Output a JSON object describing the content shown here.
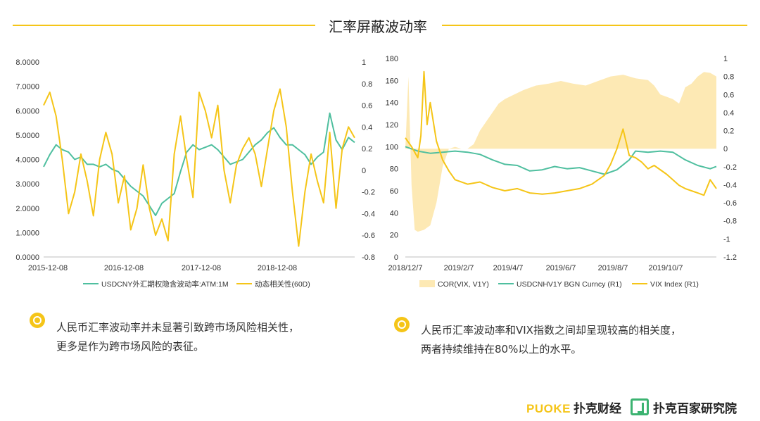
{
  "page": {
    "title": "汇率屏蔽波动率",
    "notes": [
      {
        "line1": "人民币汇率波动率并未显著引致跨市场风险相关性，",
        "line2": "更多是作为跨市场风险的表征。"
      },
      {
        "line1": "人民币汇率波动率和VIX指数之间却呈现较高的相关度，",
        "line2": "两者持续维持在80%以上的水平。"
      }
    ],
    "footer": {
      "brand1_latin": "PUOKE",
      "brand1_cn": "扑克财经",
      "brand2": "扑克百家研究院"
    }
  },
  "colors": {
    "accent": "#f5c518",
    "green_series": "#4fbf9f",
    "yellow_series": "#f5c518",
    "area_fill": "#fde9b4"
  },
  "chart_data": [
    {
      "type": "line",
      "title": "",
      "x_tick_labels": [
        "2015-12-08",
        "2016-12-08",
        "2017-12-08",
        "2018-12-08"
      ],
      "y_left": {
        "range": [
          0,
          8
        ],
        "ticks": [
          "0.0000",
          "1.0000",
          "2.0000",
          "3.0000",
          "4.0000",
          "5.0000",
          "6.0000",
          "7.0000",
          "8.0000"
        ]
      },
      "y_right": {
        "range": [
          -0.8,
          1
        ],
        "ticks": [
          "-0.8",
          "-0.6",
          "-0.4",
          "-0.2",
          "0",
          "0.2",
          "0.4",
          "0.6",
          "0.8",
          "1"
        ]
      },
      "series": [
        {
          "name": "USDCNY外汇期权隐含波动率:ATM:1M",
          "axis": "left",
          "color": "#4fbf9f",
          "t": [
            0,
            0.02,
            0.04,
            0.06,
            0.08,
            0.1,
            0.12,
            0.14,
            0.16,
            0.18,
            0.2,
            0.22,
            0.24,
            0.26,
            0.28,
            0.3,
            0.32,
            0.34,
            0.36,
            0.38,
            0.4,
            0.42,
            0.44,
            0.46,
            0.48,
            0.5,
            0.52,
            0.54,
            0.56,
            0.58,
            0.6,
            0.62,
            0.64,
            0.66,
            0.68,
            0.7,
            0.72,
            0.74,
            0.76,
            0.78,
            0.8,
            0.82,
            0.84,
            0.86,
            0.88,
            0.9,
            0.92,
            0.94,
            0.96,
            0.98,
            1
          ],
          "values": [
            3.7,
            4.2,
            4.6,
            4.4,
            4.3,
            4.0,
            4.1,
            3.8,
            3.8,
            3.7,
            3.8,
            3.6,
            3.5,
            3.2,
            2.9,
            2.7,
            2.5,
            2.1,
            1.7,
            2.2,
            2.4,
            2.6,
            3.5,
            4.3,
            4.6,
            4.4,
            4.5,
            4.6,
            4.4,
            4.1,
            3.8,
            3.9,
            4.0,
            4.3,
            4.6,
            4.8,
            5.1,
            5.3,
            4.9,
            4.6,
            4.6,
            4.4,
            4.2,
            3.8,
            4.1,
            4.3,
            5.9,
            4.8,
            4.4,
            4.9,
            4.7
          ]
        },
        {
          "name": "动态相关性(60D)",
          "axis": "right",
          "color": "#f5c518",
          "t": [
            0,
            0.02,
            0.04,
            0.06,
            0.08,
            0.1,
            0.12,
            0.14,
            0.16,
            0.18,
            0.2,
            0.22,
            0.24,
            0.26,
            0.28,
            0.3,
            0.32,
            0.34,
            0.36,
            0.38,
            0.4,
            0.42,
            0.44,
            0.46,
            0.48,
            0.5,
            0.52,
            0.54,
            0.56,
            0.58,
            0.6,
            0.62,
            0.64,
            0.66,
            0.68,
            0.7,
            0.72,
            0.74,
            0.76,
            0.78,
            0.8,
            0.82,
            0.84,
            0.86,
            0.88,
            0.9,
            0.92,
            0.94,
            0.96,
            0.98,
            1
          ],
          "values": [
            0.6,
            0.72,
            0.5,
            0.1,
            -0.4,
            -0.2,
            0.15,
            -0.1,
            -0.42,
            0.1,
            0.35,
            0.15,
            -0.3,
            -0.05,
            -0.55,
            -0.35,
            0.05,
            -0.35,
            -0.6,
            -0.45,
            -0.65,
            0.15,
            0.5,
            0.1,
            -0.25,
            0.72,
            0.55,
            0.3,
            0.6,
            0.0,
            -0.3,
            0.05,
            0.2,
            0.3,
            0.15,
            -0.15,
            0.2,
            0.55,
            0.75,
            0.4,
            -0.2,
            -0.7,
            -0.2,
            0.15,
            -0.1,
            -0.3,
            0.35,
            -0.35,
            0.2,
            0.4,
            0.3
          ]
        }
      ]
    },
    {
      "type": "line",
      "title": "",
      "x_tick_labels": [
        "2018/12/7",
        "2019/2/7",
        "2019/4/7",
        "2019/6/7",
        "2019/8/7",
        "2019/10/7"
      ],
      "y_left": {
        "range": [
          0,
          180
        ],
        "ticks": [
          "0",
          "20",
          "40",
          "60",
          "80",
          "100",
          "120",
          "140",
          "160",
          "180"
        ]
      },
      "y_right": {
        "range": [
          -1.2,
          1
        ],
        "ticks": [
          "-1.2",
          "-1",
          "-0.8",
          "-0.6",
          "-0.4",
          "-0.2",
          "0",
          "0.2",
          "0.4",
          "0.6",
          "0.8",
          "1"
        ]
      },
      "series": [
        {
          "name": "COR(VIX, V1Y)",
          "axis": "right",
          "kind": "area",
          "color": "#fde9b4",
          "t": [
            0,
            0.01,
            0.02,
            0.03,
            0.04,
            0.06,
            0.08,
            0.1,
            0.12,
            0.14,
            0.16,
            0.18,
            0.2,
            0.22,
            0.24,
            0.26,
            0.28,
            0.3,
            0.32,
            0.35,
            0.38,
            0.42,
            0.46,
            0.5,
            0.54,
            0.58,
            0.62,
            0.66,
            0.7,
            0.74,
            0.78,
            0.8,
            0.82,
            0.86,
            0.88,
            0.9,
            0.92,
            0.94,
            0.96,
            0.98,
            1
          ],
          "values": [
            0,
            0.8,
            -0.4,
            -0.9,
            -0.92,
            -0.9,
            -0.85,
            -0.6,
            -0.2,
            0,
            0.02,
            0.0,
            0.0,
            0.05,
            0.2,
            0.3,
            0.4,
            0.5,
            0.55,
            0.6,
            0.65,
            0.7,
            0.72,
            0.75,
            0.72,
            0.7,
            0.75,
            0.8,
            0.82,
            0.78,
            0.76,
            0.7,
            0.6,
            0.55,
            0.5,
            0.68,
            0.72,
            0.8,
            0.85,
            0.84,
            0.8
          ]
        },
        {
          "name": "USDCNHV1Y BGN Curncy  (R1)",
          "axis": "left",
          "color": "#4fbf9f",
          "t": [
            0,
            0.04,
            0.08,
            0.12,
            0.16,
            0.2,
            0.24,
            0.28,
            0.32,
            0.36,
            0.4,
            0.44,
            0.48,
            0.52,
            0.56,
            0.6,
            0.64,
            0.68,
            0.72,
            0.74,
            0.78,
            0.82,
            0.86,
            0.9,
            0.94,
            0.98,
            1
          ],
          "values": [
            100,
            96,
            94,
            95,
            96,
            95,
            93,
            88,
            84,
            83,
            78,
            79,
            82,
            80,
            81,
            78,
            75,
            79,
            88,
            96,
            95,
            96,
            95,
            88,
            83,
            80,
            82
          ]
        },
        {
          "name": "VIX Index  (R1)",
          "axis": "left",
          "color": "#f5c518",
          "t": [
            0,
            0.02,
            0.04,
            0.05,
            0.06,
            0.07,
            0.08,
            0.1,
            0.12,
            0.14,
            0.16,
            0.2,
            0.24,
            0.28,
            0.32,
            0.36,
            0.4,
            0.44,
            0.48,
            0.52,
            0.56,
            0.6,
            0.64,
            0.66,
            0.68,
            0.7,
            0.72,
            0.74,
            0.76,
            0.78,
            0.8,
            0.84,
            0.88,
            0.9,
            0.92,
            0.94,
            0.96,
            0.98,
            1
          ],
          "values": [
            108,
            100,
            90,
            110,
            168,
            120,
            140,
            105,
            88,
            78,
            70,
            66,
            68,
            63,
            60,
            62,
            58,
            57,
            58,
            60,
            62,
            66,
            74,
            84,
            98,
            116,
            92,
            90,
            86,
            80,
            83,
            75,
            65,
            62,
            60,
            58,
            56,
            70,
            62
          ]
        }
      ]
    }
  ]
}
